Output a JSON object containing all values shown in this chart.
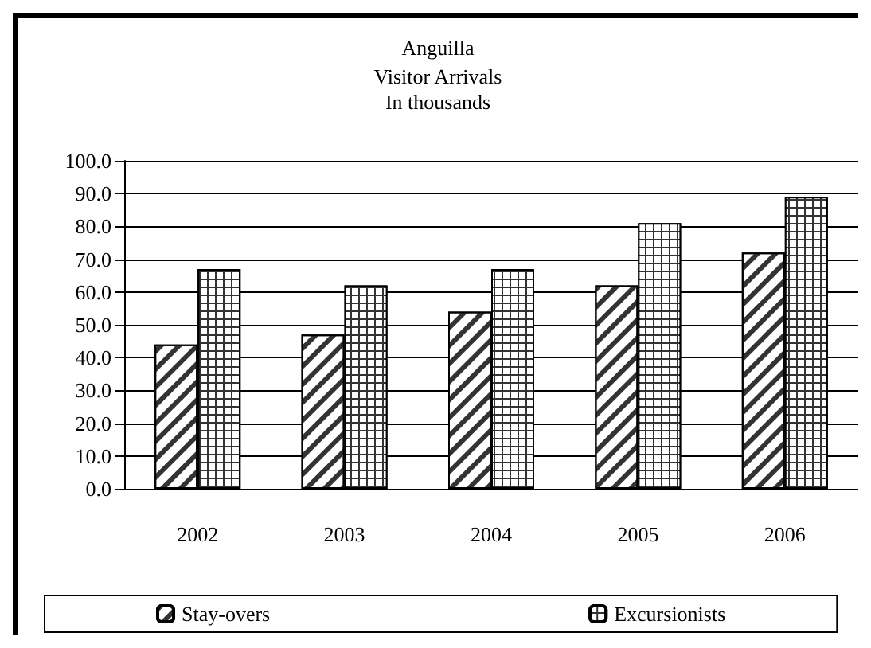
{
  "chart_data": {
    "type": "bar",
    "title": "Anguilla",
    "subtitle": "Visitor Arrivals\nIn thousands",
    "categories": [
      "2002",
      "2003",
      "2004",
      "2005",
      "2006"
    ],
    "series": [
      {
        "name": "Stay-overs",
        "color": "#ffffff",
        "values": [
          44,
          47,
          54,
          62,
          72
        ]
      },
      {
        "name": "Excursionists",
        "color": "#333333",
        "values": [
          67,
          62,
          67,
          81,
          89
        ]
      }
    ],
    "ylim": [
      0,
      100
    ],
    "yticks": [
      {
        "value": 0,
        "label": "0.0"
      },
      {
        "value": 10,
        "label": "10.0"
      },
      {
        "value": 20,
        "label": "20.0"
      },
      {
        "value": 30,
        "label": "30.0"
      },
      {
        "value": 40,
        "label": "40.0"
      },
      {
        "value": 50,
        "label": "50.0"
      },
      {
        "value": 60,
        "label": "60.0"
      },
      {
        "value": 70,
        "label": "70.0"
      },
      {
        "value": 80,
        "label": "80.0"
      },
      {
        "value": 90,
        "label": "90.0"
      },
      {
        "value": 100,
        "label": "100.0"
      }
    ],
    "grid": "y",
    "legend": "bottom"
  }
}
